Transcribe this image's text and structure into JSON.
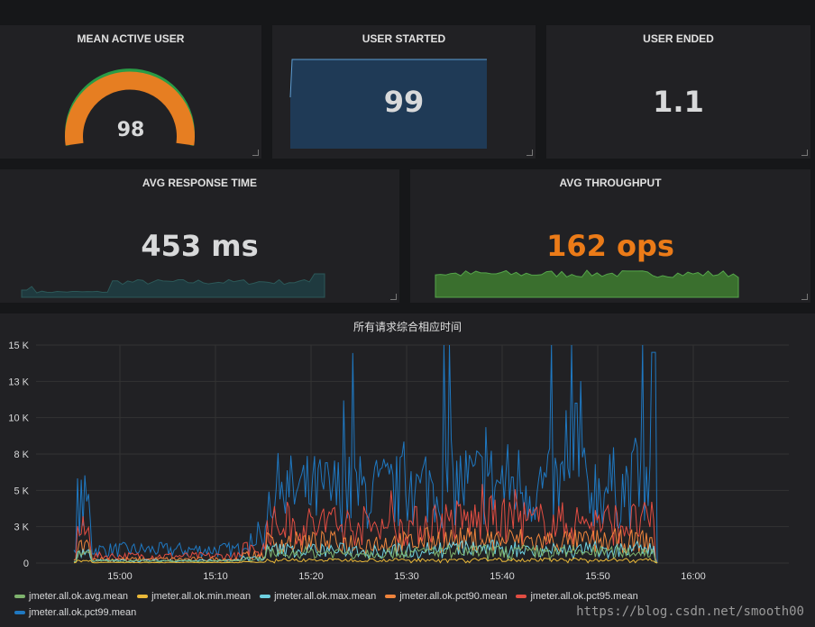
{
  "panels": {
    "mean_active_user": {
      "title": "MEAN ACTIVE USER",
      "value": "98",
      "gauge_fraction": 0.93,
      "arc_color": "#e67e22",
      "threshold_color": "#299c46"
    },
    "user_started": {
      "title": "USER STARTED",
      "value": "99",
      "spark_color": "#1f3a56",
      "spark_line": "#5d9dd3"
    },
    "user_ended": {
      "title": "USER ENDED",
      "value": "1.1"
    },
    "avg_response_time": {
      "title": "AVG RESPONSE TIME",
      "value": "453 ms",
      "value_color": "#d8d9da"
    },
    "avg_throughput": {
      "title": "AVG THROUGHPUT",
      "value": "162 ops",
      "value_color": "#eb7b18"
    }
  },
  "chart_data": {
    "type": "line",
    "title": "所有请求综合相应时间",
    "x_ticks": [
      "15:00",
      "15:10",
      "15:20",
      "15:30",
      "15:40",
      "15:50",
      "16:00"
    ],
    "y_ticks": [
      "0",
      "3 K",
      "5 K",
      "8 K",
      "10 K",
      "13 K",
      "15 K"
    ],
    "ylim": [
      0,
      15000
    ],
    "series": [
      {
        "name": "jmeter.all.ok.avg.mean",
        "color": "#7eb26d"
      },
      {
        "name": "jmeter.all.ok.min.mean",
        "color": "#eab839"
      },
      {
        "name": "jmeter.all.ok.max.mean",
        "color": "#6ed0e0"
      },
      {
        "name": "jmeter.all.ok.pct90.mean",
        "color": "#ef843c"
      },
      {
        "name": "jmeter.all.ok.pct95.mean",
        "color": "#e24d42"
      },
      {
        "name": "jmeter.all.ok.pct99.mean",
        "color": "#1f78c1"
      }
    ],
    "grid": true,
    "legend": "bottom"
  },
  "watermark": "https://blog.csdn.net/smooth00"
}
